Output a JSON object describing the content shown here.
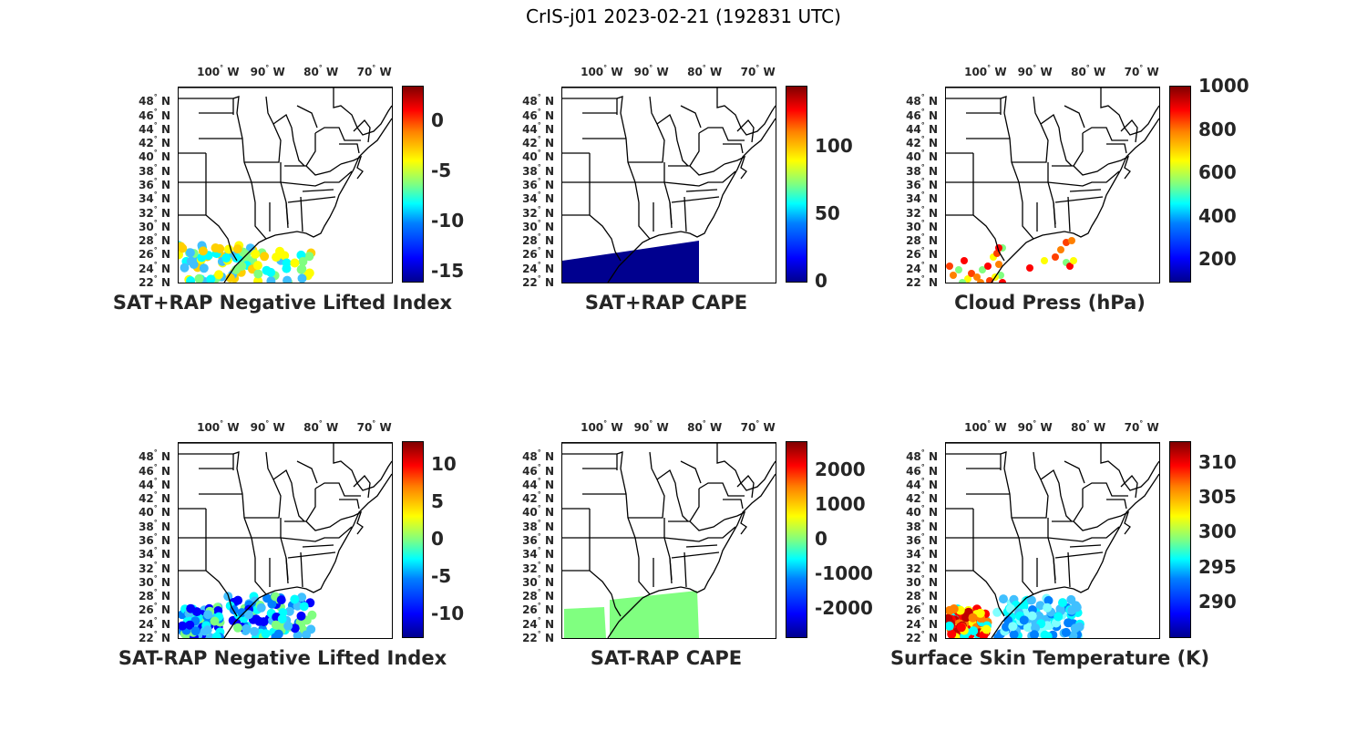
{
  "figure": {
    "title": "CrIS-j01 2023-02-21 (192831 UTC)"
  },
  "map": {
    "lon_labels": [
      {
        "value": -100,
        "text": "100",
        "suffix": "W"
      },
      {
        "value": -90,
        "text": "90",
        "suffix": "W"
      },
      {
        "value": -80,
        "text": "80",
        "suffix": "W"
      },
      {
        "value": -70,
        "text": "70",
        "suffix": "W"
      }
    ],
    "lat_labels": [
      {
        "value": 48,
        "text": "48",
        "suffix": "N"
      },
      {
        "value": 46,
        "text": "46",
        "suffix": "N"
      },
      {
        "value": 44,
        "text": "44",
        "suffix": "N"
      },
      {
        "value": 42,
        "text": "42",
        "suffix": "N"
      },
      {
        "value": 40,
        "text": "40",
        "suffix": "N"
      },
      {
        "value": 38,
        "text": "38",
        "suffix": "N"
      },
      {
        "value": 36,
        "text": "36",
        "suffix": "N"
      },
      {
        "value": 34,
        "text": "34",
        "suffix": "N"
      },
      {
        "value": 32,
        "text": "32",
        "suffix": "N"
      },
      {
        "value": 30,
        "text": "30",
        "suffix": "N"
      },
      {
        "value": 28,
        "text": "28",
        "suffix": "N"
      },
      {
        "value": 26,
        "text": "26",
        "suffix": "N"
      },
      {
        "value": 24,
        "text": "24",
        "suffix": "N"
      },
      {
        "value": 22,
        "text": "22",
        "suffix": "N"
      }
    ],
    "extent": {
      "lon_min": -106,
      "lon_max": -66,
      "lat_min": 22,
      "lat_max": 50
    }
  },
  "panels": [
    {
      "id": "sat-plus-rap-li",
      "title": "SAT+RAP Negative Lifted Index",
      "colorbar": {
        "min": -16,
        "max": 3.5,
        "ticks": [
          {
            "v": 0,
            "t": "0"
          },
          {
            "v": -5,
            "t": "-5"
          },
          {
            "v": -10,
            "t": "-10"
          },
          {
            "v": -15,
            "t": "-15"
          }
        ]
      },
      "swath": {
        "type": "mixed",
        "region": "gulf-west",
        "colors": [
          "#ffff00",
          "#80ff80",
          "#00ffff",
          "#ffd000",
          "#40c0ff"
        ]
      }
    },
    {
      "id": "sat-plus-rap-cape",
      "title": "SAT+RAP CAPE",
      "colorbar": {
        "min": 0,
        "max": 145,
        "ticks": [
          {
            "v": 100,
            "t": "100"
          },
          {
            "v": 50,
            "t": "50"
          },
          {
            "v": 0,
            "t": "0"
          }
        ]
      },
      "swath": {
        "type": "solid",
        "region": "gulf-full",
        "colors": [
          "#00008f"
        ]
      }
    },
    {
      "id": "cloud-press",
      "title": "Cloud Press (hPa)",
      "colorbar": {
        "min": 100,
        "max": 1000,
        "ticks": [
          {
            "v": 1000,
            "t": "1000"
          },
          {
            "v": 800,
            "t": "800"
          },
          {
            "v": 600,
            "t": "600"
          },
          {
            "v": 400,
            "t": "400"
          },
          {
            "v": 200,
            "t": "200"
          }
        ]
      },
      "swath": {
        "type": "scatter",
        "region": "gulf-points",
        "colors": [
          "#ff4000",
          "#ff8000",
          "#80ff80",
          "#ff0000",
          "#ffff00"
        ]
      }
    },
    {
      "id": "sat-minus-rap-li",
      "title": "SAT-RAP Negative Lifted Index",
      "colorbar": {
        "min": -13,
        "max": 13,
        "ticks": [
          {
            "v": 10,
            "t": "10"
          },
          {
            "v": 5,
            "t": "5"
          },
          {
            "v": 0,
            "t": "0"
          },
          {
            "v": -5,
            "t": "-5"
          },
          {
            "v": -10,
            "t": "-10"
          }
        ]
      },
      "swath": {
        "type": "mixed",
        "region": "gulf-split",
        "colors": [
          "#00ffff",
          "#40c0ff",
          "#80ff80",
          "#0080ff",
          "#0000ff"
        ]
      }
    },
    {
      "id": "sat-minus-rap-cape",
      "title": "SAT-RAP CAPE",
      "colorbar": {
        "min": -2800,
        "max": 2800,
        "ticks": [
          {
            "v": 2000,
            "t": "2000"
          },
          {
            "v": 1000,
            "t": "1000"
          },
          {
            "v": 0,
            "t": "0"
          },
          {
            "v": -1000,
            "t": "-1000"
          },
          {
            "v": -2000,
            "t": "-2000"
          }
        ]
      },
      "swath": {
        "type": "solid",
        "region": "gulf-split",
        "colors": [
          "#80ff80"
        ]
      }
    },
    {
      "id": "surface-skin-temp",
      "title": "Surface Skin Temperature (K)",
      "colorbar": {
        "min": 285,
        "max": 313,
        "ticks": [
          {
            "v": 310,
            "t": "310"
          },
          {
            "v": 305,
            "t": "305"
          },
          {
            "v": 300,
            "t": "300"
          },
          {
            "v": 295,
            "t": "295"
          },
          {
            "v": 290,
            "t": "290"
          }
        ]
      },
      "swath": {
        "type": "skin",
        "region": "gulf-split",
        "colors": [
          "#00ffff",
          "#40c0ff",
          "#0080ff",
          "#ff0000",
          "#ff8000",
          "#ffff00"
        ]
      }
    }
  ]
}
